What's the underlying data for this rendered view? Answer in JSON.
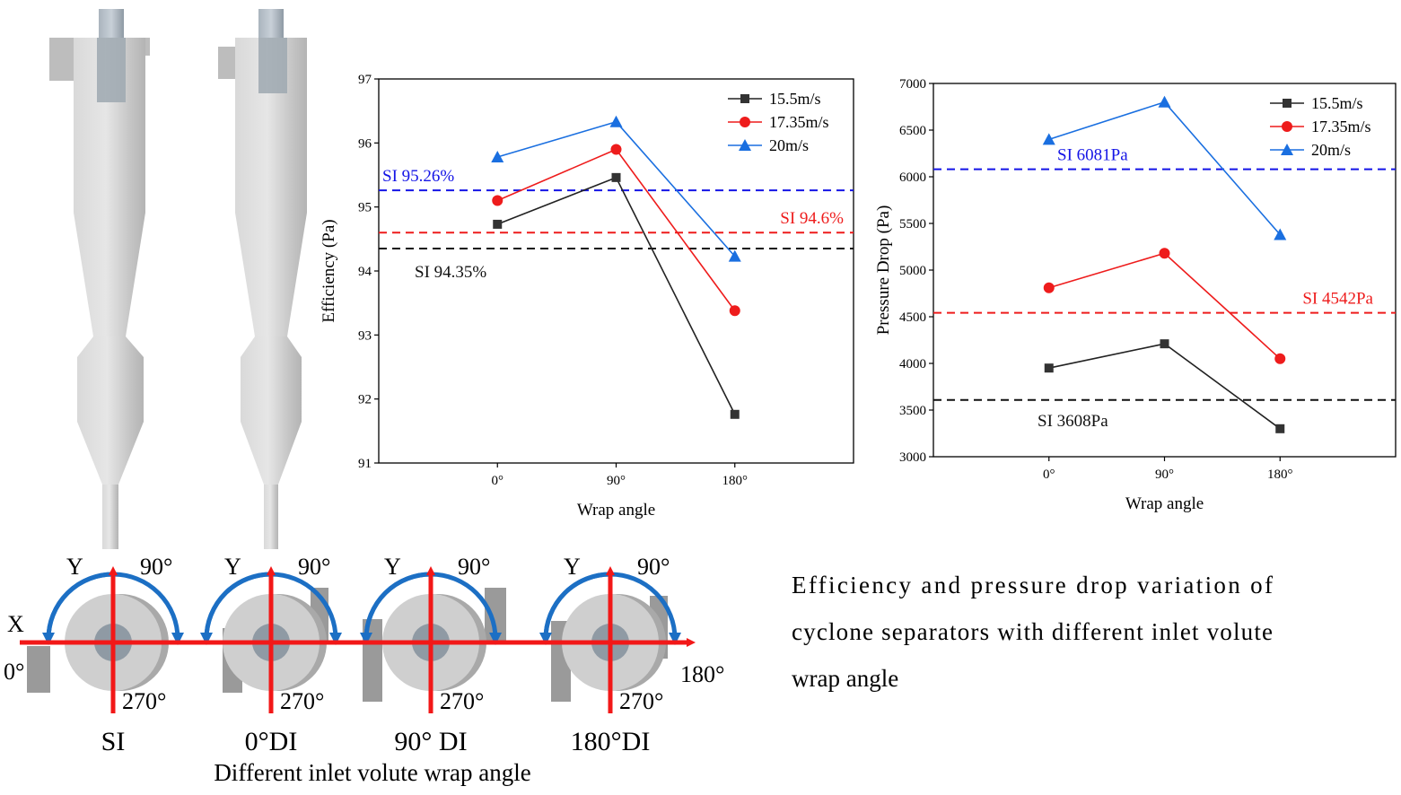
{
  "caption": {
    "lines": [
      "Efficiency and pressure drop variation of",
      "cyclone separators with different inlet volute",
      "wrap angle"
    ]
  },
  "schematic": {
    "title": "Different inlet volute wrap angle",
    "x_axis_label": "X",
    "y_axis_label": "Y",
    "angle_90": "90°",
    "angle_270": "270°",
    "angle_0": "0°",
    "angle_180": "180°",
    "variants": [
      "SI",
      "0°DI",
      "90° DI",
      "180°DI"
    ]
  },
  "colors": {
    "series_black": "#222222",
    "series_red": "#ee1c1c",
    "series_blue": "#1a6fe0",
    "ref_blue": "#1414e6",
    "arrow_red": "#f21818",
    "arc_blue": "#1c6fc4",
    "cyclone_gray": "#cfcfcf"
  },
  "chart_data": [
    {
      "type": "line",
      "xlabel": "Wrap angle",
      "ylabel": "Efficiency (Pa)",
      "categories": [
        "0°",
        "90°",
        "180°"
      ],
      "ylim": [
        91,
        97
      ],
      "yticks": [
        "91",
        "92",
        "93",
        "94",
        "95",
        "96",
        "97"
      ],
      "legend_position": "top-right",
      "series": [
        {
          "name": "15.5m/s",
          "marker": "square",
          "color": "#222222",
          "values": [
            94.73,
            95.46,
            91.76
          ]
        },
        {
          "name": "17.35m/s",
          "marker": "circle",
          "color": "#ee1c1c",
          "values": [
            95.1,
            95.9,
            93.38
          ]
        },
        {
          "name": "20m/s",
          "marker": "triangle",
          "color": "#1a6fe0",
          "values": [
            95.78,
            96.33,
            94.23
          ]
        }
      ],
      "reference_lines": [
        {
          "label": "SI 95.26%",
          "value": 95.26,
          "color": "#1414e6"
        },
        {
          "label": "SI 94.6%",
          "value": 94.6,
          "color": "#ee1c1c"
        },
        {
          "label": "SI 94.35%",
          "value": 94.35,
          "color": "#111111"
        }
      ]
    },
    {
      "type": "line",
      "xlabel": "Wrap angle",
      "ylabel": "Pressure Drop (Pa)",
      "categories": [
        "0°",
        "90°",
        "180°"
      ],
      "ylim": [
        3000,
        7000
      ],
      "yticks": [
        "3000",
        "3500",
        "4000",
        "4500",
        "5000",
        "5500",
        "6000",
        "6500",
        "7000"
      ],
      "legend_position": "top-right",
      "series": [
        {
          "name": "15.5m/s",
          "marker": "square",
          "color": "#222222",
          "values": [
            3950,
            4210,
            3300
          ]
        },
        {
          "name": "17.35m/s",
          "marker": "circle",
          "color": "#ee1c1c",
          "values": [
            4810,
            5180,
            4050
          ]
        },
        {
          "name": "20m/s",
          "marker": "triangle",
          "color": "#1a6fe0",
          "values": [
            6400,
            6800,
            5380
          ]
        }
      ],
      "reference_lines": [
        {
          "label": "SI 6081Pa",
          "value": 6081,
          "color": "#1414e6"
        },
        {
          "label": "SI 4542Pa",
          "value": 4542,
          "color": "#ee1c1c"
        },
        {
          "label": "SI 3608Pa",
          "value": 3608,
          "color": "#111111"
        }
      ]
    }
  ]
}
